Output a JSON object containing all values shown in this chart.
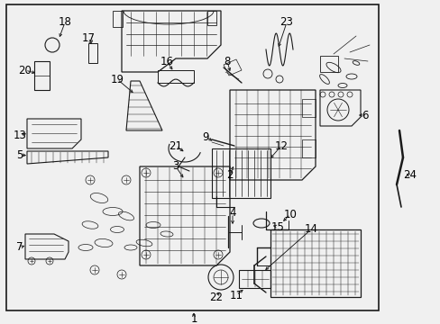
{
  "bg_color": "#f0f0f0",
  "border_color": "#000000",
  "line_color": "#1a1a1a",
  "text_color": "#000000",
  "fig_width": 4.89,
  "fig_height": 3.6,
  "dpi": 100,
  "label_fontsize": 8.5,
  "small_label_fontsize": 7.5,
  "border_lw": 1.0,
  "part_lw": 0.7
}
